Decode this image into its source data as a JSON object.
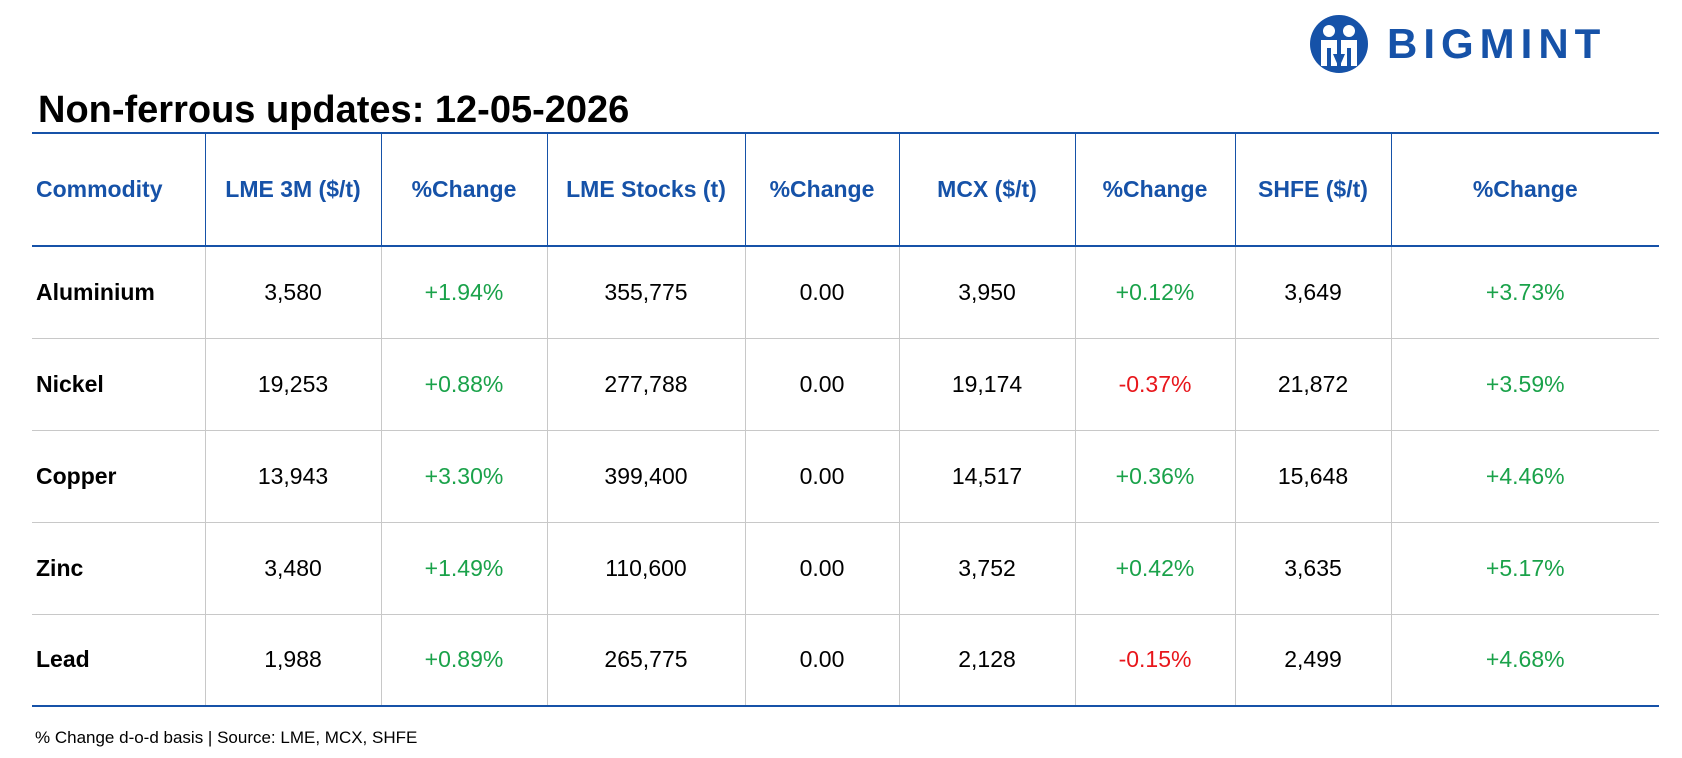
{
  "brand": {
    "name": "BIGMINT",
    "icon": "bigmint-logo-icon",
    "color": "#1652a8"
  },
  "title": "Non-ferrous updates: 12-05-2026",
  "table": {
    "headers": [
      "Commodity",
      "LME 3M ($/t)",
      "%Change",
      "LME Stocks (t)",
      "%Change",
      "MCX ($/t)",
      "%Change",
      "SHFE ($/t)",
      "%Change"
    ],
    "rows": [
      {
        "commodity": "Aluminium",
        "lme_3m": "3,580",
        "lme_3m_change": "+1.94%",
        "lme_stocks": "355,775",
        "lme_stocks_change": "0.00",
        "mcx": "3,950",
        "mcx_change": "+0.12%",
        "shfe": "3,649",
        "shfe_change": "+3.73%"
      },
      {
        "commodity": "Nickel",
        "lme_3m": "19,253",
        "lme_3m_change": "+0.88%",
        "lme_stocks": "277,788",
        "lme_stocks_change": "0.00",
        "mcx": "19,174",
        "mcx_change": "-0.37%",
        "shfe": "21,872",
        "shfe_change": "+3.59%"
      },
      {
        "commodity": "Copper",
        "lme_3m": "13,943",
        "lme_3m_change": "+3.30%",
        "lme_stocks": "399,400",
        "lme_stocks_change": "0.00",
        "mcx": "14,517",
        "mcx_change": "+0.36%",
        "shfe": "15,648",
        "shfe_change": "+4.46%"
      },
      {
        "commodity": "Zinc",
        "lme_3m": "3,480",
        "lme_3m_change": "+1.49%",
        "lme_stocks": "110,600",
        "lme_stocks_change": "0.00",
        "mcx": "3,752",
        "mcx_change": "+0.42%",
        "shfe": "3,635",
        "shfe_change": "+5.17%"
      },
      {
        "commodity": "Lead",
        "lme_3m": "1,988",
        "lme_3m_change": "+0.89%",
        "lme_stocks": "265,775",
        "lme_stocks_change": "0.00",
        "mcx": "2,128",
        "mcx_change": "-0.15%",
        "shfe": "2,499",
        "shfe_change": "+4.68%"
      }
    ]
  },
  "colors": {
    "header_text": "#1652a8",
    "positive": "#1aa24a",
    "negative": "#e8161b",
    "neutral": "#000000"
  },
  "footnote": "% Change d-o-d basis | Source: LME, MCX, SHFE"
}
